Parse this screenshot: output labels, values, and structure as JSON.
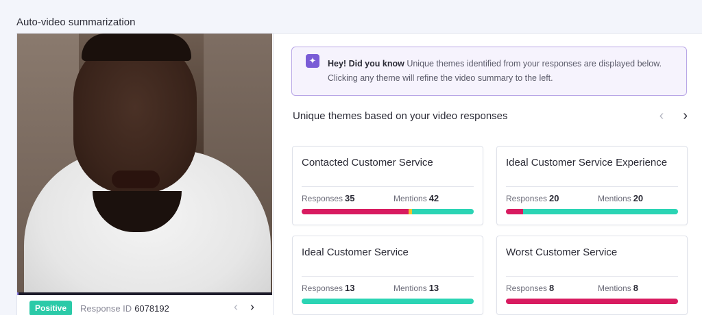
{
  "section_title": "Auto-video summarization",
  "video": {
    "sentiment_badge": "Positive",
    "response_id_label": "Response ID",
    "response_id": "6078192",
    "prev_icon": "chevron-left-icon",
    "next_icon": "chevron-right-icon"
  },
  "info": {
    "icon": "sparkle-icon",
    "heading": "Hey! Did you know",
    "text": "Unique themes identified from your responses are displayed below. Clicking any theme will refine the video summary to the left."
  },
  "themes": {
    "title": "Unique themes based on your video responses",
    "cards": [
      {
        "title": "Contacted Customer Service",
        "responses_label": "Responses",
        "responses": "35",
        "mentions_label": "Mentions",
        "mentions": "42",
        "bar": [
          {
            "color": "#d81b60",
            "pct": 62
          },
          {
            "color": "#f2c12e",
            "pct": 2
          },
          {
            "color": "#2bd4b4",
            "pct": 36
          }
        ]
      },
      {
        "title": "Ideal Customer Service Experience",
        "responses_label": "Responses",
        "responses": "20",
        "mentions_label": "Mentions",
        "mentions": "20",
        "bar": [
          {
            "color": "#d81b60",
            "pct": 10
          },
          {
            "color": "#2bd4b4",
            "pct": 90
          }
        ]
      },
      {
        "title": "Ideal Customer Service",
        "responses_label": "Responses",
        "responses": "13",
        "mentions_label": "Mentions",
        "mentions": "13",
        "bar": [
          {
            "color": "#2bd4b4",
            "pct": 100
          }
        ]
      },
      {
        "title": "Worst Customer Service",
        "responses_label": "Responses",
        "responses": "8",
        "mentions_label": "Mentions",
        "mentions": "8",
        "bar": [
          {
            "color": "#d81b60",
            "pct": 100
          }
        ]
      }
    ]
  },
  "colors": {
    "accent": "#7a5cd6",
    "positive": "#2bcaa8",
    "negative": "#d81b60",
    "neutral": "#f2c12e"
  }
}
